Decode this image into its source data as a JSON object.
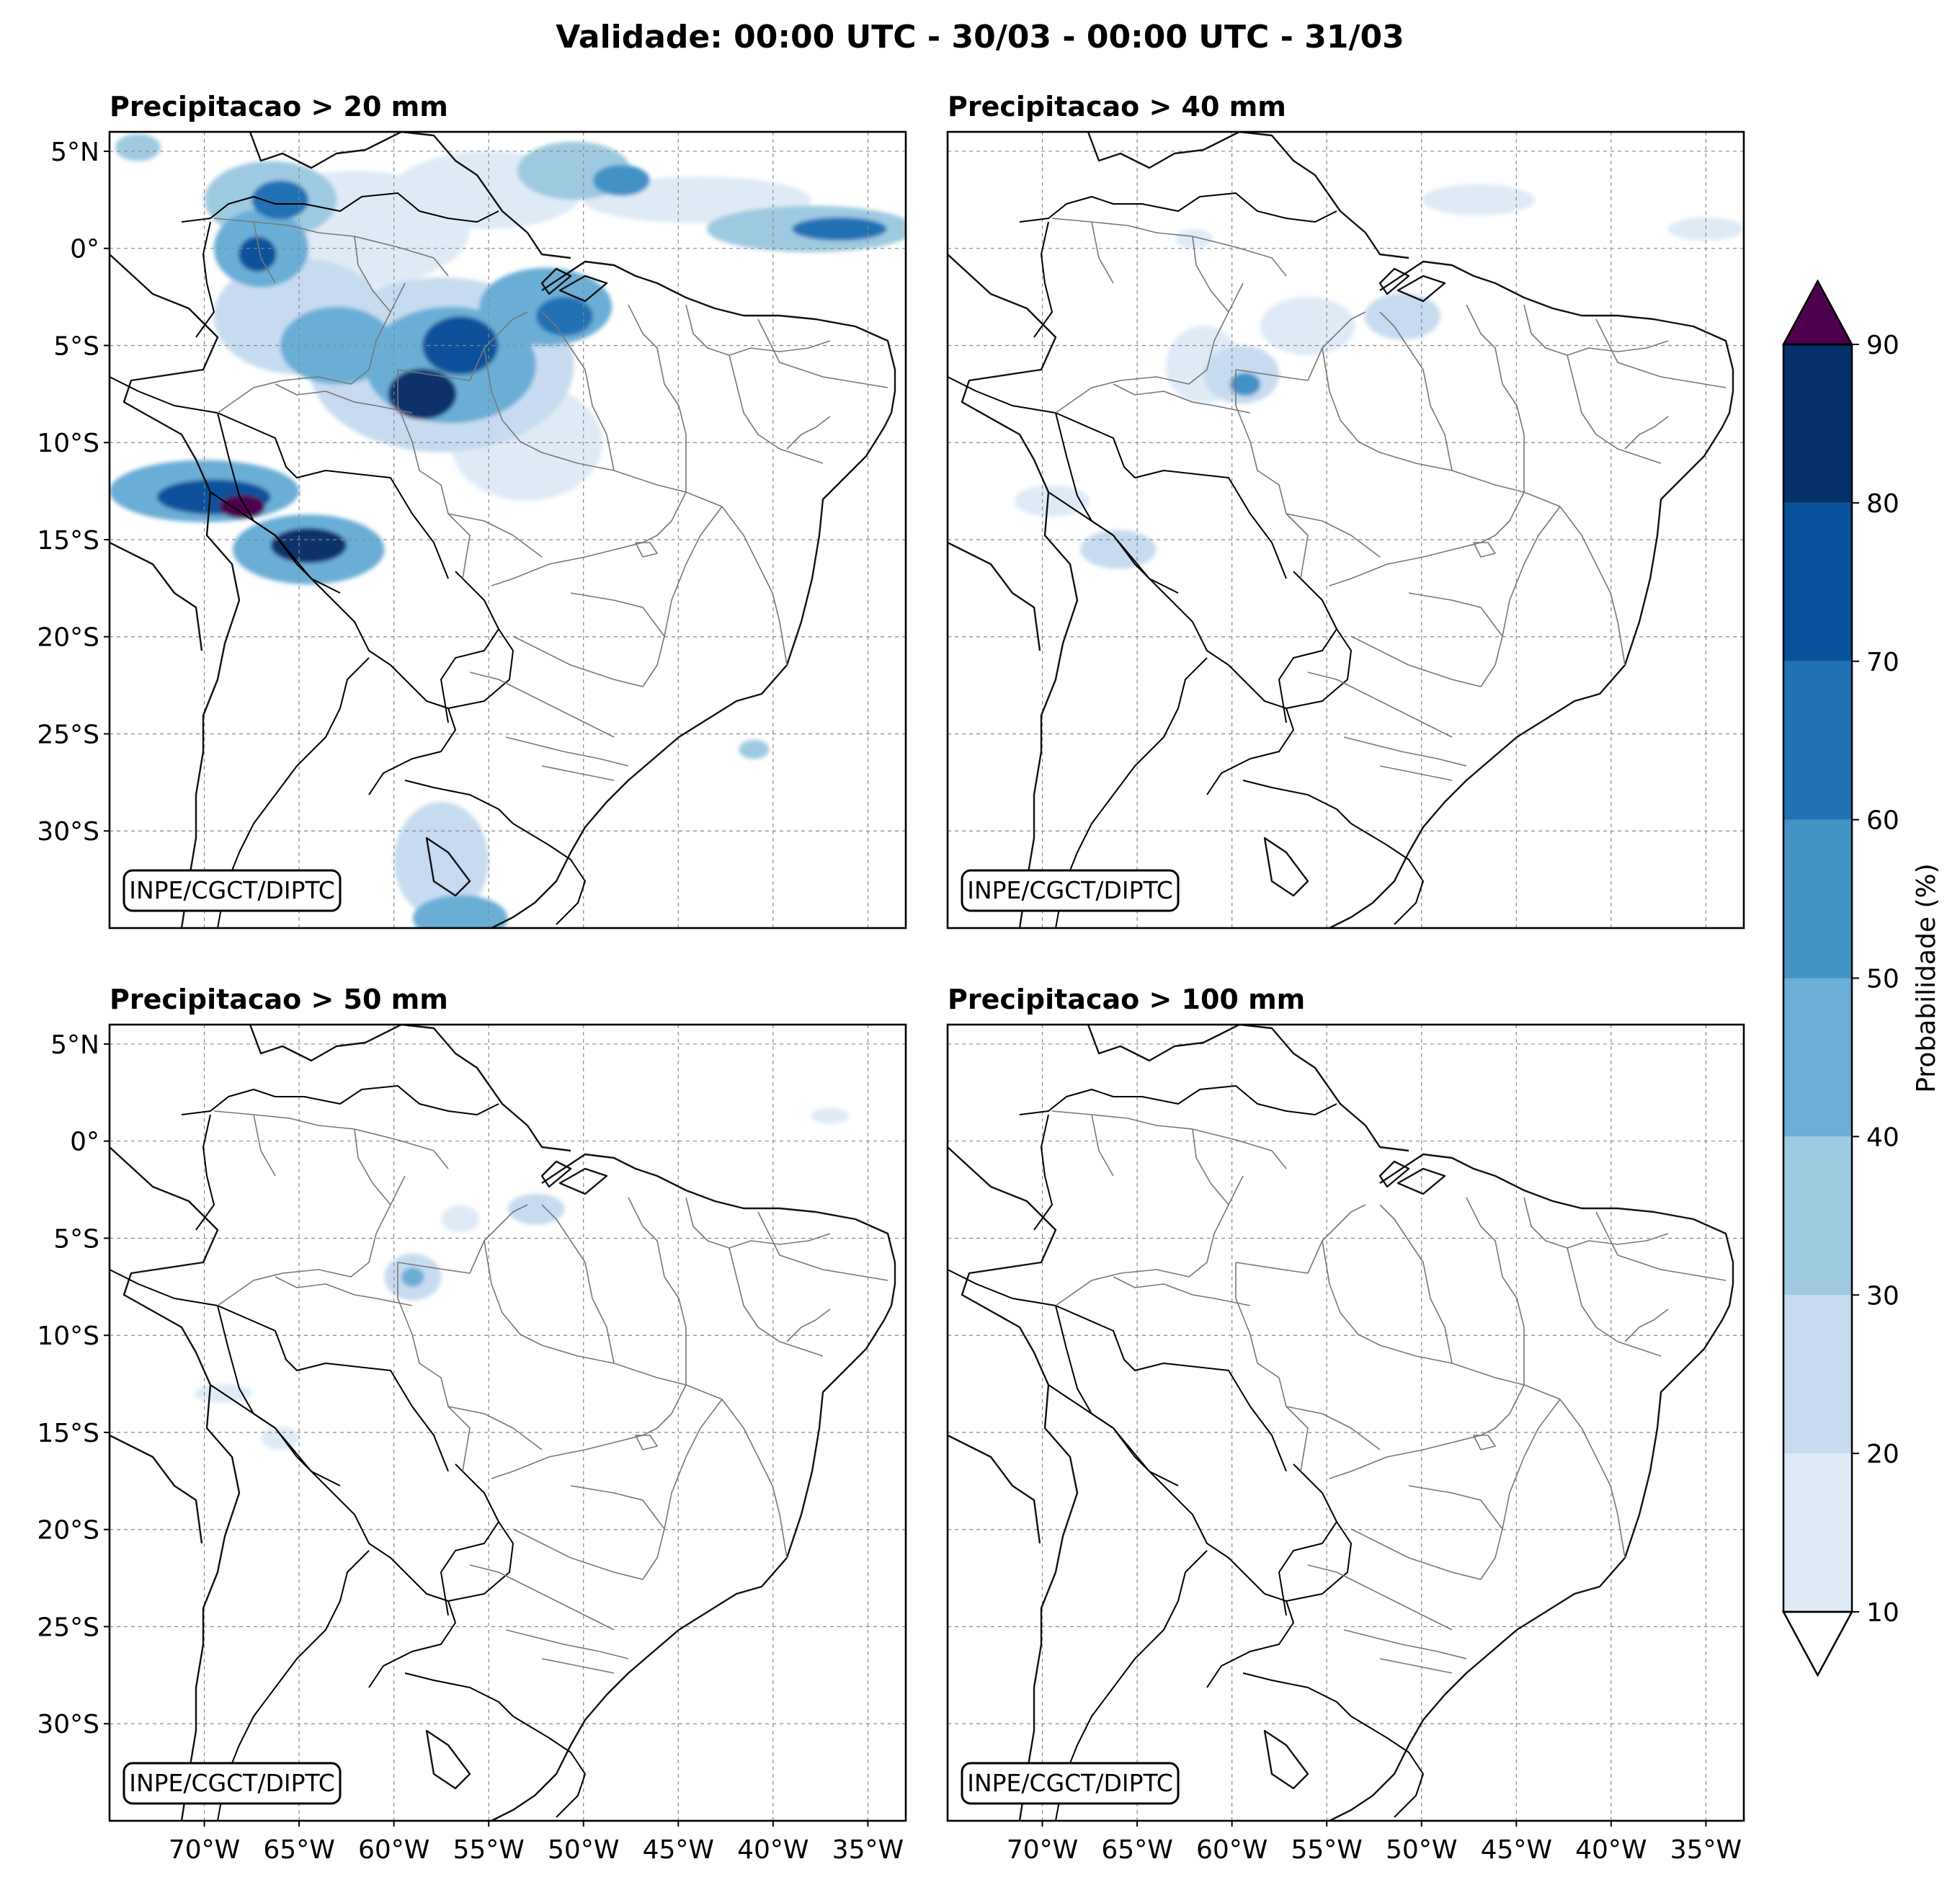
{
  "title": "Validade: 00:00 UTC - 30/03 - 00:00 UTC - 31/03",
  "map": {
    "lon_range": [
      -75,
      -33
    ],
    "lat_range": [
      -35,
      6
    ],
    "lon_ticks": [
      -70,
      -65,
      -60,
      -55,
      -50,
      -45,
      -40,
      -35
    ],
    "lat_ticks": [
      5,
      0,
      -5,
      -10,
      -15,
      -20,
      -25,
      -30
    ],
    "lon_tick_labels": [
      "70°W",
      "65°W",
      "60°W",
      "55°W",
      "50°W",
      "45°W",
      "40°W",
      "35°W"
    ],
    "lat_tick_labels": [
      "5°N",
      "0°",
      "5°S",
      "10°S",
      "15°S",
      "20°S",
      "25°S",
      "30°S"
    ],
    "gridlines": true
  },
  "credit": "INPE/CGCT/DIPTC",
  "panels": [
    {
      "title": "Precipitacao > 20 mm",
      "blobs": [
        {
          "lon": -73.5,
          "lat": 5.2,
          "rx": 1.2,
          "ry": 0.7,
          "p": 30
        },
        {
          "lon": -66.5,
          "lat": 2.5,
          "rx": 3.5,
          "ry": 2.0,
          "p": 30
        },
        {
          "lon": -66.0,
          "lat": 2.5,
          "rx": 1.5,
          "ry": 1.0,
          "p": 60
        },
        {
          "lon": -67.0,
          "lat": 0.0,
          "rx": 2.5,
          "ry": 2.0,
          "p": 40
        },
        {
          "lon": -67.2,
          "lat": -0.3,
          "rx": 1.0,
          "ry": 0.9,
          "p": 70
        },
        {
          "lon": -62.0,
          "lat": 1.0,
          "rx": 6.0,
          "ry": 3.0,
          "p": 15
        },
        {
          "lon": -55.0,
          "lat": 3.0,
          "rx": 5.0,
          "ry": 2.0,
          "p": 15
        },
        {
          "lon": -50.5,
          "lat": 4.0,
          "rx": 3.0,
          "ry": 1.5,
          "p": 30
        },
        {
          "lon": -48.0,
          "lat": 3.5,
          "rx": 1.5,
          "ry": 0.8,
          "p": 50
        },
        {
          "lon": -44.0,
          "lat": 2.5,
          "rx": 6.0,
          "ry": 1.2,
          "p": 15
        },
        {
          "lon": -38.0,
          "lat": 1.0,
          "rx": 5.5,
          "ry": 1.2,
          "p": 30
        },
        {
          "lon": -36.5,
          "lat": 1.0,
          "rx": 2.5,
          "ry": 0.6,
          "p": 60
        },
        {
          "lon": -65.0,
          "lat": -3.5,
          "rx": 4.5,
          "ry": 3.0,
          "p": 20
        },
        {
          "lon": -63.0,
          "lat": -5.0,
          "rx": 3.0,
          "ry": 2.0,
          "p": 40
        },
        {
          "lon": -57.5,
          "lat": -6.0,
          "rx": 7.0,
          "ry": 4.5,
          "p": 20
        },
        {
          "lon": -57.0,
          "lat": -6.0,
          "rx": 4.5,
          "ry": 3.0,
          "p": 40
        },
        {
          "lon": -56.5,
          "lat": -5.0,
          "rx": 2.0,
          "ry": 1.5,
          "p": 70
        },
        {
          "lon": -58.5,
          "lat": -7.5,
          "rx": 1.8,
          "ry": 1.3,
          "p": 80
        },
        {
          "lon": -52.0,
          "lat": -3.0,
          "rx": 3.5,
          "ry": 2.0,
          "p": 40
        },
        {
          "lon": -51.0,
          "lat": -3.5,
          "rx": 1.5,
          "ry": 1.0,
          "p": 60
        },
        {
          "lon": -53.0,
          "lat": -10.0,
          "rx": 4.0,
          "ry": 3.0,
          "p": 15
        },
        {
          "lon": -70.0,
          "lat": -12.5,
          "rx": 5.0,
          "ry": 1.6,
          "p": 40
        },
        {
          "lon": -69.5,
          "lat": -12.8,
          "rx": 3.0,
          "ry": 0.9,
          "p": 70
        },
        {
          "lon": -68.0,
          "lat": -13.3,
          "rx": 1.2,
          "ry": 0.6,
          "p": 90
        },
        {
          "lon": -64.5,
          "lat": -15.5,
          "rx": 4.0,
          "ry": 1.8,
          "p": 40
        },
        {
          "lon": -64.5,
          "lat": -15.3,
          "rx": 2.0,
          "ry": 0.9,
          "p": 80
        },
        {
          "lon": -57.5,
          "lat": -31.5,
          "rx": 2.5,
          "ry": 3.0,
          "p": 20
        },
        {
          "lon": -56.5,
          "lat": -34.5,
          "rx": 2.5,
          "ry": 1.2,
          "p": 40
        },
        {
          "lon": -41.0,
          "lat": -25.8,
          "rx": 0.8,
          "ry": 0.5,
          "p": 30
        }
      ]
    },
    {
      "title": "Precipitacao > 40 mm",
      "blobs": [
        {
          "lon": -56.0,
          "lat": -4.0,
          "rx": 2.5,
          "ry": 1.5,
          "p": 15
        },
        {
          "lon": -59.5,
          "lat": -6.5,
          "rx": 2.0,
          "ry": 1.5,
          "p": 20
        },
        {
          "lon": -59.3,
          "lat": -7.0,
          "rx": 0.8,
          "ry": 0.6,
          "p": 50
        },
        {
          "lon": -61.5,
          "lat": -6.0,
          "rx": 2.0,
          "ry": 2.0,
          "p": 10
        },
        {
          "lon": -51.0,
          "lat": -3.5,
          "rx": 2.0,
          "ry": 1.2,
          "p": 20
        },
        {
          "lon": -69.5,
          "lat": -13.0,
          "rx": 2.0,
          "ry": 0.8,
          "p": 15
        },
        {
          "lon": -66.0,
          "lat": -15.5,
          "rx": 2.0,
          "ry": 1.0,
          "p": 20
        },
        {
          "lon": -47.0,
          "lat": 2.5,
          "rx": 3.0,
          "ry": 0.8,
          "p": 10
        },
        {
          "lon": -35.0,
          "lat": 1.0,
          "rx": 2.0,
          "ry": 0.6,
          "p": 10
        },
        {
          "lon": -62.0,
          "lat": 0.5,
          "rx": 1.0,
          "ry": 0.5,
          "p": 10
        }
      ]
    },
    {
      "title": "Precipitacao > 50 mm",
      "blobs": [
        {
          "lon": -59.0,
          "lat": -7.0,
          "rx": 1.5,
          "ry": 1.2,
          "p": 20
        },
        {
          "lon": -59.0,
          "lat": -7.0,
          "rx": 0.6,
          "ry": 0.5,
          "p": 40
        },
        {
          "lon": -56.5,
          "lat": -4.0,
          "rx": 1.0,
          "ry": 0.7,
          "p": 15
        },
        {
          "lon": -52.5,
          "lat": -3.5,
          "rx": 1.5,
          "ry": 0.8,
          "p": 20
        },
        {
          "lon": -69.0,
          "lat": -13.0,
          "rx": 1.5,
          "ry": 0.5,
          "p": 15
        },
        {
          "lon": -66.0,
          "lat": -15.3,
          "rx": 1.0,
          "ry": 0.6,
          "p": 15
        },
        {
          "lon": -37.0,
          "lat": 1.3,
          "rx": 1.0,
          "ry": 0.4,
          "p": 10
        }
      ]
    },
    {
      "title": "Precipitacao > 100 mm",
      "blobs": []
    }
  ],
  "colorbar": {
    "label": "Probabilidade (%)",
    "levels": [
      10,
      20,
      30,
      40,
      50,
      60,
      70,
      80,
      90
    ],
    "tick_labels": [
      "10",
      "20",
      "30",
      "40",
      "50",
      "60",
      "70",
      "80",
      "90"
    ],
    "colors": [
      "#deebf7",
      "#c6dbef",
      "#9ecae1",
      "#6baed6",
      "#4292c6",
      "#2171b5",
      "#08519c",
      "#08306b"
    ],
    "over_color": "#4d004b",
    "under_color": "#ffffff"
  }
}
